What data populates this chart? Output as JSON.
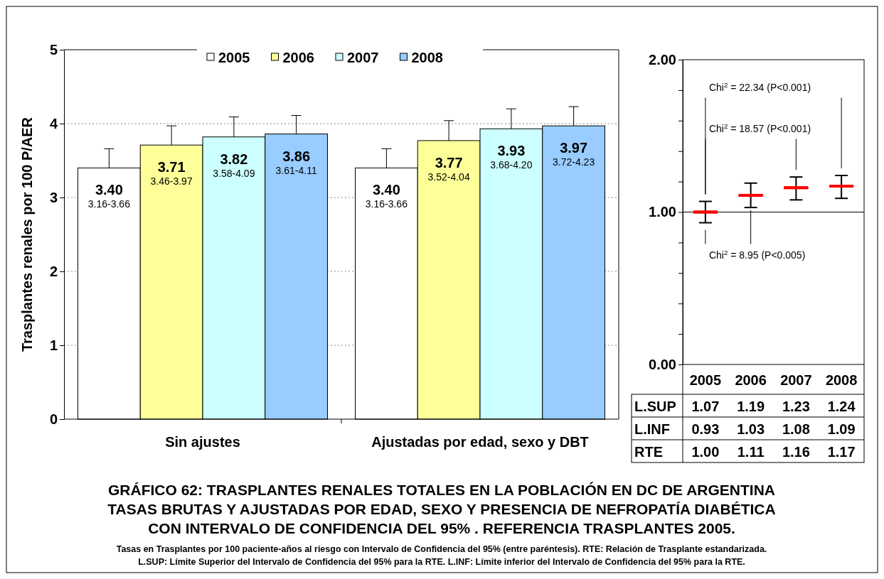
{
  "chart_data": [
    {
      "type": "bar",
      "title": "GRÁFICO 62:  TRASPLANTES RENALES TOTALES EN LA POBLACIÓN EN DC DE ARGENTINA\nTASAS BRUTAS Y AJUSTADAS POR EDAD, SEXO Y PRESENCIA DE NEFROPATÍA DIABÉTICA\nCON INTERVALO DE CONFIDENCIA DEL 95% . REFERENCIA TRASPLANTES  2005.",
      "ylabel": "Trasplantes renales por 100 P/AER",
      "categories": [
        "Sin ajustes",
        "Ajustadas por edad, sexo y DBT"
      ],
      "series": [
        {
          "name": "2005",
          "color": "#ffffff",
          "values": [
            3.4,
            3.4
          ],
          "errors": [
            [
              3.16,
              3.66
            ],
            [
              3.16,
              3.66
            ]
          ],
          "value_labels": [
            "3.40\n3.16-3.66",
            "3.40\n3.16-3.66"
          ]
        },
        {
          "name": "2006",
          "color": "#ffff99",
          "values": [
            3.71,
            3.77
          ],
          "errors": [
            [
              3.46,
              3.97
            ],
            [
              3.52,
              4.04
            ]
          ],
          "value_labels": [
            "3.71\n3.46-3.97",
            "3.77\n3.52-4.04"
          ]
        },
        {
          "name": "2007",
          "color": "#ccffff",
          "values": [
            3.82,
            3.93
          ],
          "errors": [
            [
              3.58,
              4.09
            ],
            [
              3.68,
              4.2
            ]
          ],
          "value_labels": [
            "3.82\n3.58-4.09",
            "3.93\n3.68-4.20"
          ]
        },
        {
          "name": "2008",
          "color": "#99ccff",
          "values": [
            3.86,
            3.97
          ],
          "errors": [
            [
              3.61,
              4.11
            ],
            [
              3.72,
              4.23
            ]
          ],
          "value_labels": [
            "3.86\n3.61-4.11",
            "3.97\n3.72-4.23"
          ]
        }
      ],
      "ylim": [
        0,
        5
      ],
      "yticks": [
        0,
        1,
        2,
        3,
        4,
        5
      ],
      "grid": "y",
      "legend": "top",
      "annotations": [
        "Tasas en Trasplantes por 100 paciente-años al riesgo con Intervalo de Confidencia del 95% (entre paréntesis). RTE: Relación de Trasplante estandarizada.",
        "L.SUP: Límite Superior del Intervalo de Confidencia del 95%  para la RTE. L.INF: Límite inferior del Intervalo de Confidencia del 95%  para la RTE."
      ]
    },
    {
      "type": "box",
      "categories": [
        "2005",
        "2006",
        "2007",
        "2008"
      ],
      "series": [
        {
          "color": "#ff0000",
          "boxes": [
            {
              "low": 0.93,
              "q1": 1.0,
              "median": 1.0,
              "q3": 1.0,
              "high": 1.07
            },
            {
              "low": 1.03,
              "q1": 1.11,
              "median": 1.11,
              "q3": 1.11,
              "high": 1.19
            },
            {
              "low": 1.08,
              "q1": 1.16,
              "median": 1.16,
              "q3": 1.16,
              "high": 1.23
            },
            {
              "low": 1.09,
              "q1": 1.17,
              "median": 1.17,
              "q3": 1.17,
              "high": 1.24
            }
          ]
        }
      ],
      "ylim": [
        0,
        2
      ],
      "yticks": [
        {
          "value": 0,
          "label": "0.00"
        },
        {
          "value": 0.2,
          "label": null
        },
        {
          "value": 0.4,
          "label": null
        },
        {
          "value": 0.6,
          "label": null
        },
        {
          "value": 0.8,
          "label": null
        },
        {
          "value": 1,
          "label": "1.00"
        },
        {
          "value": 1.2,
          "label": null
        },
        {
          "value": 1.4,
          "label": null
        },
        {
          "value": 1.6,
          "label": null
        },
        {
          "value": 1.8,
          "label": null
        },
        {
          "value": 2,
          "label": "2.00"
        }
      ],
      "ref_lines": [
        {
          "axis": "y",
          "value": 1
        }
      ],
      "annotations": [
        {
          "text": "Chi$^{2}$ = 8.95 (P<0.005)",
          "x": "2006",
          "y": 1.03
        },
        "Chi$^{2}$ = 18.57 (P<0.001)",
        "Chi$^{2}$ = 22.34 (P<0.001)"
      ]
    },
    {
      "type": "other",
      "annotations": [
        "L.SUP",
        "1.07",
        "1.19",
        "1.23",
        "1.24",
        "L.INF",
        "0.93",
        "1.03",
        "1.08",
        "1.09",
        "RTE",
        "1.00",
        "1.11",
        "1.16",
        "1.17"
      ]
    }
  ]
}
